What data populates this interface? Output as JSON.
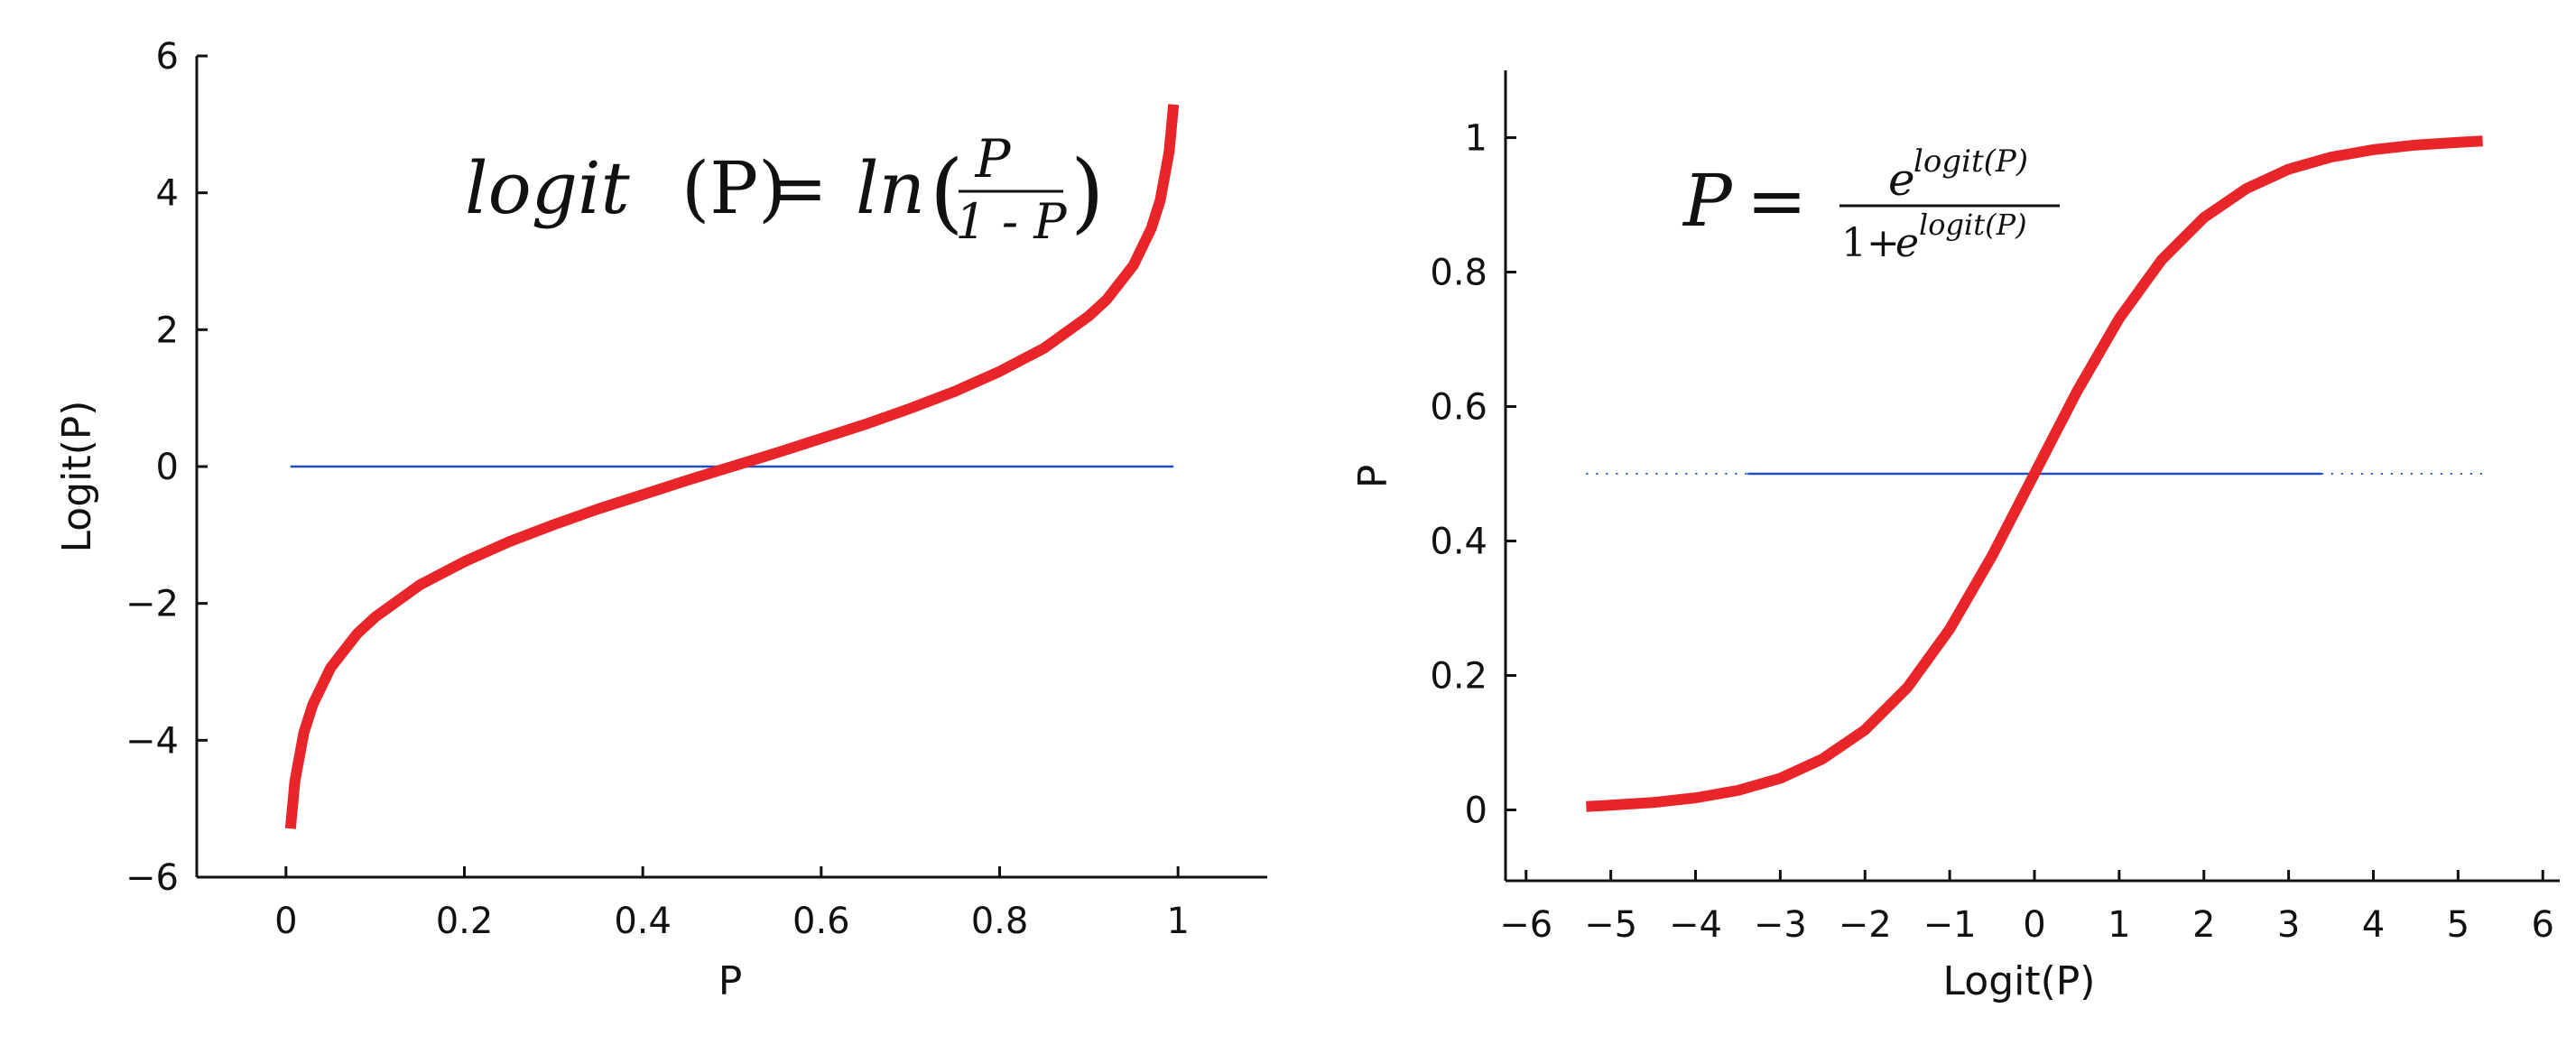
{
  "chart_data": [
    {
      "type": "line",
      "title": "",
      "xlabel": "P",
      "ylabel": "Logit(P)",
      "xlim": [
        -0.1,
        1.1
      ],
      "ylim": [
        -6,
        6
      ],
      "xticks": [
        0,
        0.2,
        0.4,
        0.6,
        0.8,
        1
      ],
      "yticks": [
        -6,
        -4,
        -2,
        0,
        2,
        4,
        6
      ],
      "xtick_labels": [
        "0",
        "0.2",
        "0.4",
        "0.6",
        "0.8",
        "1"
      ],
      "ytick_labels": [
        "−6",
        "−4",
        "−2",
        "0",
        "2",
        "4",
        "6"
      ],
      "grid": false,
      "annotation": {
        "lhs": "logit",
        "lhs_arg": "(P)",
        "eq": "=",
        "fn": "ln",
        "num": "P",
        "den": "1 - P"
      },
      "series": [
        {
          "color": "#e8262a",
          "x": [
            0.005,
            0.01,
            0.02,
            0.03,
            0.05,
            0.08,
            0.1,
            0.15,
            0.2,
            0.25,
            0.3,
            0.35,
            0.4,
            0.45,
            0.5,
            0.55,
            0.6,
            0.65,
            0.7,
            0.75,
            0.8,
            0.85,
            0.9,
            0.92,
            0.95,
            0.97,
            0.98,
            0.99,
            0.995
          ],
          "y": [
            -5.29,
            -4.6,
            -3.89,
            -3.48,
            -2.94,
            -2.44,
            -2.2,
            -1.73,
            -1.39,
            -1.1,
            -0.85,
            -0.62,
            -0.41,
            -0.2,
            0,
            0.2,
            0.41,
            0.62,
            0.85,
            1.1,
            1.39,
            1.73,
            2.2,
            2.44,
            2.94,
            3.48,
            3.89,
            4.6,
            5.29
          ]
        },
        {
          "color": "#1f4fbf",
          "x": [
            0.005,
            0.995
          ],
          "y": [
            0,
            0
          ]
        }
      ]
    },
    {
      "type": "line",
      "title": "",
      "xlabel": "Logit(P)",
      "ylabel": "P",
      "xlim": [
        -6.2,
        6.2
      ],
      "ylim": [
        -0.1,
        1.1
      ],
      "xticks": [
        -6,
        -5,
        -4,
        -3,
        -2,
        -1,
        0,
        1,
        2,
        3,
        4,
        5,
        6
      ],
      "yticks": [
        0,
        0.2,
        0.4,
        0.6,
        0.8,
        1
      ],
      "xtick_labels": [
        "−6",
        "−5",
        "−4",
        "−3",
        "−2",
        "−1",
        "0",
        "1",
        "2",
        "3",
        "4",
        "5",
        "6"
      ],
      "ytick_labels": [
        "0",
        "0.2",
        "0.4",
        "0.6",
        "0.8",
        "1"
      ],
      "grid": false,
      "annotation": {
        "lhs": "P",
        "eq": "=",
        "num_base": "e",
        "num_exp": "logit(P)",
        "den_one": "1+",
        "den_base": "e",
        "den_exp": "logit(P)"
      },
      "series": [
        {
          "color": "#e8262a",
          "x": [
            -5.29,
            -5,
            -4.5,
            -4,
            -3.5,
            -3,
            -2.5,
            -2,
            -1.5,
            -1,
            -0.5,
            0,
            0.5,
            1,
            1.5,
            2,
            2.5,
            3,
            3.5,
            4,
            4.5,
            5,
            5.29
          ],
          "y": [
            0.005,
            0.007,
            0.011,
            0.018,
            0.029,
            0.047,
            0.076,
            0.119,
            0.182,
            0.269,
            0.378,
            0.5,
            0.622,
            0.731,
            0.818,
            0.881,
            0.924,
            0.953,
            0.971,
            0.982,
            0.989,
            0.993,
            0.995
          ]
        },
        {
          "color": "#1f4fbf",
          "style": "dotted-ends",
          "x": [
            -5.29,
            5.29
          ],
          "y": [
            0.5,
            0.5
          ]
        }
      ]
    }
  ]
}
